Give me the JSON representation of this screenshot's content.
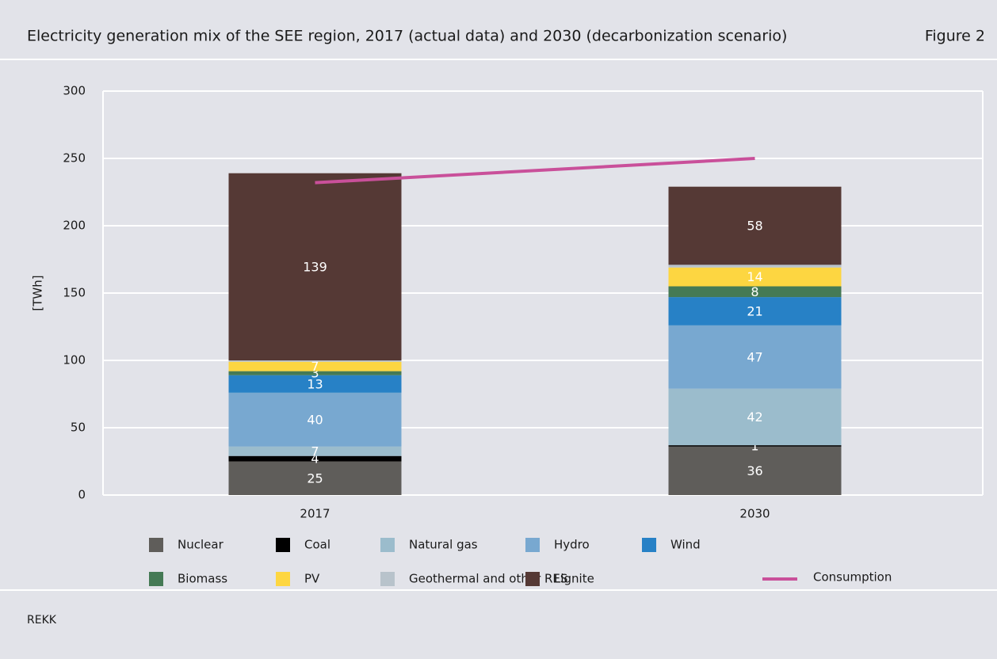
{
  "chart_data": {
    "type": "stacked-bar",
    "title": "Electricity generation mix of the SEE region, 2017 (actual data) and 2030 (decarbonization scenario)",
    "figure_label": "Figure 2",
    "source": "REKK",
    "y_label": "[TWh]",
    "categories": [
      "2017",
      "2030"
    ],
    "ylim": [
      0,
      300
    ],
    "yticks": [
      0,
      50,
      100,
      150,
      200,
      250,
      300
    ],
    "grid": true,
    "series": [
      {
        "name": "Nuclear",
        "color": "#5f5d5a",
        "values": [
          25,
          36
        ]
      },
      {
        "name": "Coal",
        "color": "#000000",
        "values": [
          4,
          1
        ]
      },
      {
        "name": "Natural gas",
        "color": "#9bbccc",
        "values": [
          7,
          42
        ]
      },
      {
        "name": "Hydro",
        "color": "#78a8d0",
        "values": [
          40,
          47
        ]
      },
      {
        "name": "Wind",
        "color": "#2781c6",
        "values": [
          13,
          21
        ]
      },
      {
        "name": "Biomass",
        "color": "#457a55",
        "values": [
          3,
          8
        ]
      },
      {
        "name": "PV",
        "color": "#fdd641",
        "values": [
          7,
          14
        ]
      },
      {
        "name": "Geothermal and other RES",
        "color": "#b8c3cb",
        "values": [
          1,
          2
        ]
      },
      {
        "name": "Lignite",
        "color": "#553935",
        "values": [
          139,
          58
        ]
      }
    ],
    "labeled_series": [
      0,
      1,
      2,
      3,
      4,
      5,
      6,
      8
    ],
    "line_series": {
      "name": "Consumption",
      "color": "#c9509a",
      "values": [
        232,
        250
      ]
    }
  }
}
